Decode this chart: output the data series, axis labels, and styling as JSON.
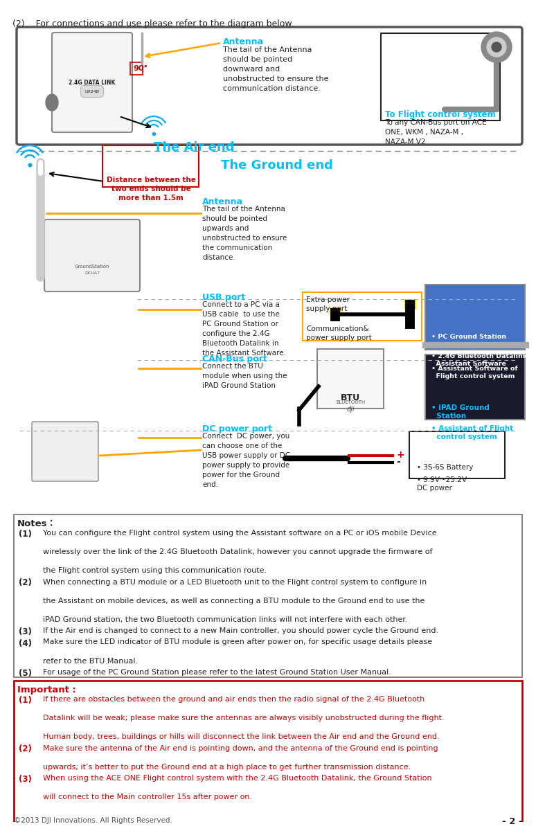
{
  "page_title_line": "(2)    For connections and use please refer to the diagram below.",
  "air_end_label": "The Air end",
  "ground_end_label": "The Ground end",
  "antenna_label_air": "Antenna",
  "antenna_text_air": "The tail of the Antenna\nshould be pointed\ndownward and\nunobstructed to ensure the\ncommunication distance.",
  "antenna_label_ground": "Antenna",
  "antenna_text_ground": "The tail of the Antenna\nshould be pointed\nupwards and\nunobstructed to ensure\nthe communication\ndistance.",
  "flight_control_label": "To Flight control system",
  "flight_control_text": "To any CAN-Bus port on ACE\nONE, WKM , NAZA-M ,\nNAZA-M V2",
  "distance_text": "Distance between the\ntwo ends should be\nmore than 1.5m",
  "usb_port_label": "USB port",
  "usb_port_text": "Connect to a PC via a\nUSB cable  to use the\nPC Ground Station or\nconfigure the 2.4G\nBluetooth Datalink in\nthe Assistant Software.",
  "extra_power_text": "Extra power\nsupply port",
  "comm_power_text": "Communication&\npower supply port",
  "pc_box_items": [
    "PC Ground Station",
    "2.4G Bluetooth Datalink\nAssistant Software",
    "Assistant Software of\nFlight control system"
  ],
  "canbus_label": "CAN-Bus port",
  "canbus_text": "Connect the BTU\nmodule when using the\niPAD Ground Station",
  "ipad_box_items": [
    "iPAD Ground\nStation",
    "Assistant of Flight\ncontrol system"
  ],
  "dc_port_label": "DC power port",
  "dc_port_text": "Connect  DC power, you\ncan choose one of the\nUSB power supply or DC\npower supply to provide\npower for the Ground\nend.",
  "battery_items": [
    "3S-6S Battery",
    "9.9V~25.2V\nDC power"
  ],
  "notes_title": "Notes：",
  "notes": [
    "(1)\tYou can configure the Flight control system using the Assistant software on a PC or iOS mobile Device\n\twirelessly over the link of the 2.4G Bluetooth Datalink, however you cannot upgrade the firmware of\n\tthe Flight control system using this communication route.",
    "(2)\tWhen connecting a BTU module or a LED Bluetooth unit to the Flight control system to configure in\n\tthe Assistant on mobile devices, as well as connecting a BTU module to the Ground end to use the\n\tiPAD Ground station, the two Bluetooth communication links will not interfere with each other.",
    "(3)\tIf the Air end is changed to connect to a new Main controller, you should power cycle the Ground end.",
    "(4)\tMake sure the LED indicator of BTU module is green after power on, for specific usage details please\n\trefer to the BTU Manual.",
    "(5)\tFor usage of the PC Ground Station please refer to the latest Ground Station User Manual."
  ],
  "important_title": "Important :",
  "important": [
    "(1)\tIf there are obstacles between the ground and air ends then the radio signal of the 2.4G Bluetooth\n\tDatalink will be weak; please make sure the antennas are always visibly unobstructed during the flight.\n\tHuman body, trees, buildings or hills will disconnect the link between the Air end and the Ground end.",
    "(2)\tMake sure the antenna of the Air end is pointing down, and the antenna of the Ground end is pointing\n\tupwards; it’s better to put the Ground end at a high place to get further transmission distance.",
    "(3)\tWhen using the ACE ONE Flight control system with the 2.4G Bluetooth Datalink, the Ground Station\n\twill connect to the Main controller 15s after power on."
  ],
  "footer_left": "©2013 DJI Innovations. All Rights Reserved.",
  "footer_right": "- 2 -",
  "color_cyan": "#00BFFF",
  "color_red": "#CC0000",
  "color_orange": "#FFA500",
  "color_dark": "#222222",
  "color_gray": "#888888",
  "color_lightgray": "#DDDDDD",
  "color_white": "#FFFFFF",
  "color_black": "#000000",
  "color_blue_bg": "#4472C4",
  "color_dark_box": "#1a1a2e"
}
